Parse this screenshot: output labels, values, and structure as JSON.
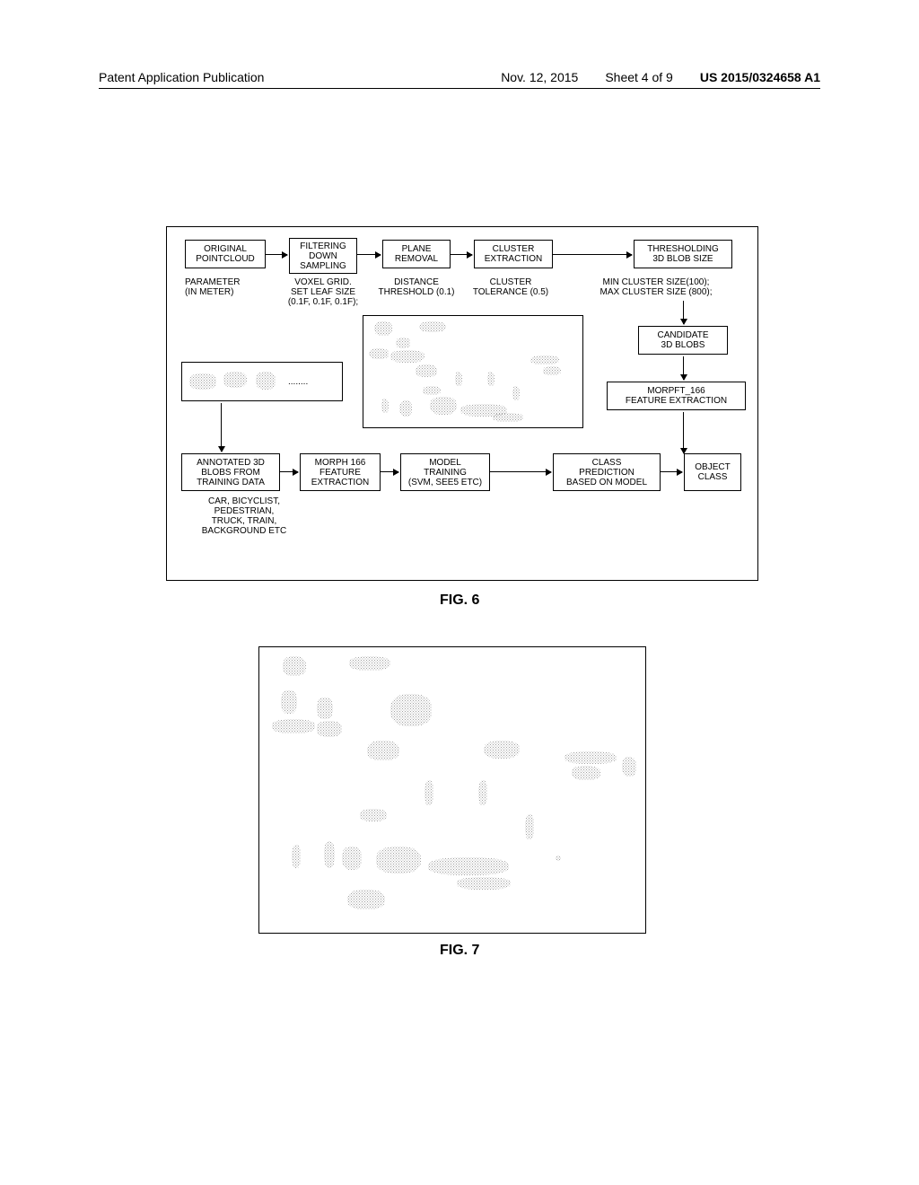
{
  "header": {
    "left": "Patent Application Publication",
    "date": "Nov. 12, 2015",
    "sheet": "Sheet 4 of 9",
    "pubno": "US 2015/0324658 A1"
  },
  "fig6": {
    "boxes": {
      "original": "ORIGINAL\nPOINTCLOUD",
      "filtering": "FILTERING\nDOWN\nSAMPLING",
      "plane": "PLANE\nREMOVAL",
      "cluster": "CLUSTER\nEXTRACTION",
      "threshold": "THRESHOLDING\n3D BLOB SIZE",
      "candidate": "CANDIDATE\n3D BLOBS",
      "morpft": "MORPFT_166\nFEATURE EXTRACTION",
      "annotated": "ANNOTATED 3D\nBLOBS FROM\nTRAINING DATA",
      "morph2": "MORPH 166\nFEATURE\nEXTRACTION",
      "model": "MODEL\nTRAINING\n(SVM, SEE5 ETC)",
      "predict": "CLASS\nPREDICTION\nBASED ON MODEL",
      "objclass": "OBJECT\nCLASS"
    },
    "params": {
      "label": "PARAMETER\n(IN METER)",
      "voxel": "VOXEL GRID.\nSET LEAF SIZE\n(0.1F, 0.1F, 0.1F);",
      "distance": "DISTANCE\nTHRESHOLD (0.1)",
      "cluster": "CLUSTER\nTOLERANCE (0.5)",
      "minmax": "MIN CLUSTER SIZE(100);\nMAX CLUSTER SIZE (800);"
    },
    "classes": "CAR, BICYCLIST,\nPEDESTRIAN,\nTRUCK, TRAIN,\nBACKGROUND ETC",
    "dots": "........",
    "label": "FIG. 6"
  },
  "fig7": {
    "label": "FIG. 7"
  }
}
